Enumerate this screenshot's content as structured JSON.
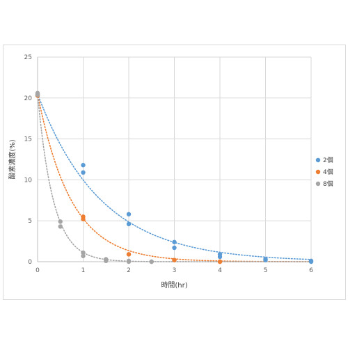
{
  "chart_data": {
    "type": "scatter",
    "xlabel": "時間(hr)",
    "ylabel": "酸素濃度(%)",
    "xlim": [
      0,
      6
    ],
    "ylim": [
      0,
      25
    ],
    "x_ticks": [
      "0",
      "1",
      "2",
      "3",
      "4",
      "5",
      "6"
    ],
    "y_ticks": [
      "0",
      "5",
      "10",
      "15",
      "20",
      "25"
    ],
    "grid": true,
    "legend_position": "right",
    "trendline": "dotted exponential",
    "series": [
      {
        "name": "2個",
        "color": "#5B9BD5",
        "points": [
          [
            0,
            20.5
          ],
          [
            0,
            20.3
          ],
          [
            1,
            11.8
          ],
          [
            1,
            10.9
          ],
          [
            2,
            5.8
          ],
          [
            2,
            4.6
          ],
          [
            3,
            2.4
          ],
          [
            3,
            1.7
          ],
          [
            4,
            0.9
          ],
          [
            4,
            0.6
          ],
          [
            5,
            0.3
          ],
          [
            5,
            0.2
          ],
          [
            6,
            0.1
          ],
          [
            6,
            0.0
          ]
        ],
        "trend": {
          "a": 20.5,
          "k": 0.72
        }
      },
      {
        "name": "4個",
        "color": "#ED7D31",
        "points": [
          [
            0,
            20.5
          ],
          [
            0,
            20.3
          ],
          [
            1,
            5.5
          ],
          [
            1,
            5.2
          ],
          [
            2,
            0.9
          ],
          [
            2,
            0.9
          ],
          [
            3,
            0.2
          ],
          [
            3,
            0.2
          ],
          [
            4,
            0.0
          ],
          [
            4,
            0.0
          ]
        ],
        "trend": {
          "a": 20.5,
          "k": 1.36
        }
      },
      {
        "name": "8個",
        "color": "#A5A5A5",
        "points": [
          [
            0,
            20.6
          ],
          [
            0,
            20.4
          ],
          [
            0.5,
            4.9
          ],
          [
            0.5,
            4.3
          ],
          [
            1,
            1.1
          ],
          [
            1,
            0.7
          ],
          [
            1.5,
            0.3
          ],
          [
            1.5,
            0.1
          ],
          [
            2,
            0.1
          ],
          [
            2,
            0.0
          ],
          [
            2.5,
            0.0
          ],
          [
            2.5,
            0.0
          ]
        ],
        "trend": {
          "a": 20.5,
          "k": 2.9
        }
      }
    ]
  }
}
